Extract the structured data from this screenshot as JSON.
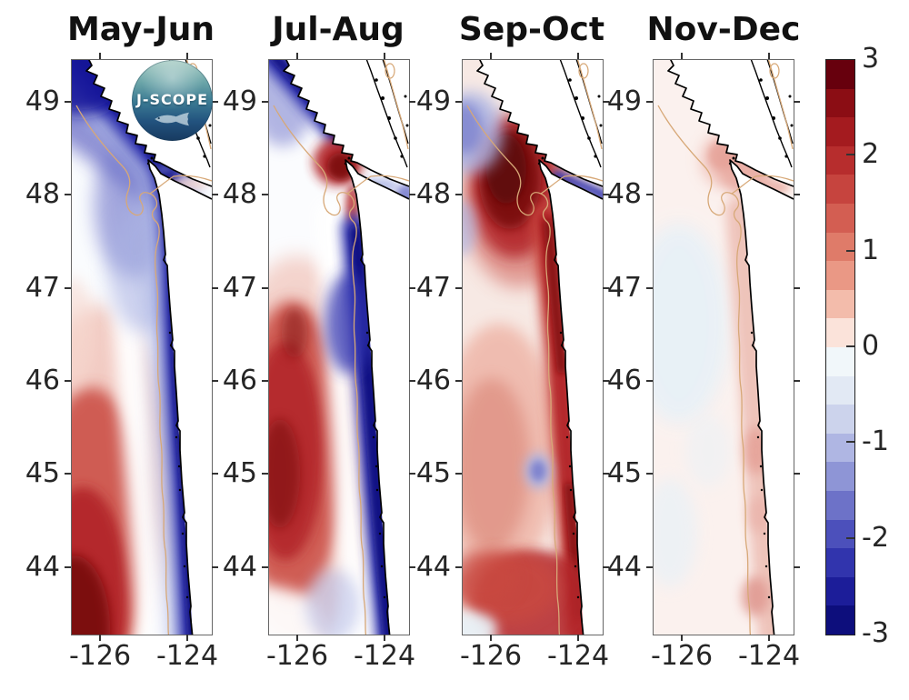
{
  "figure": {
    "titles": [
      "May-Jun",
      "Jul-Aug",
      "Sep-Oct",
      "Nov-Dec"
    ],
    "y_tick_labels": [
      "49",
      "48",
      "47",
      "46",
      "45",
      "44"
    ],
    "x_tick_labels": [
      "-126",
      "-124"
    ],
    "colorbar": {
      "tick_labels": [
        "3",
        "2",
        "1",
        "0",
        "-1",
        "-2",
        "-3"
      ],
      "segment_colors": [
        "#67000d",
        "#8b0d14",
        "#a41b1f",
        "#b72d2d",
        "#c6443e",
        "#d35e52",
        "#df7b69",
        "#ea9885",
        "#f3bcab",
        "#fbe3da",
        "#f1f7fa",
        "#e2e9f4",
        "#ccd3ec",
        "#afb6e3",
        "#8e95d6",
        "#6d72c8",
        "#4c50bb",
        "#3134ad",
        "#1c1d99",
        "#0d0e7c"
      ]
    },
    "logo_text": "J-SCOPE"
  },
  "palette": {
    "maroon": "#5f070d",
    "deep_red": "#7a0c11",
    "red": "#b3272a",
    "mid_red": "#c94a40",
    "salmon": "#e09486",
    "pink": "#eeb2a4",
    "rose": "#eec1b8",
    "rose2": "#e9aca3",
    "rose3": "#e5a096",
    "rose4": "#e09a92",
    "rose5": "#eab3aa",
    "light_pink": "#f7d9d0",
    "white": "#ffffff",
    "faint_blue": "#e8f1f7",
    "light_blue": "#aab3e3",
    "mid_blue": "#6a6fc8",
    "blue": "#3336b0",
    "deep_blue": "#14149a",
    "navy": "#0a0a80",
    "tan": "#d7a877",
    "coast": "#000000",
    "axis_text": "#262626",
    "p1_base": "#fafcfe",
    "p2_base": "#fbfcfe",
    "p3_base": "#f7e9e4",
    "p4_base": "#fbf1ee"
  },
  "chart_data": {
    "type": "heatmap",
    "panels": [
      {
        "title": "May-Jun",
        "pattern": "Strong negative anomaly (-2 to -3) along the entire coast and off Vancouver Island; strong positive anomaly (+2 to +3) offshore to the southwest; narrow near-zero white band between them."
      },
      {
        "title": "Jul-Aug",
        "pattern": "Strong negative anomaly (-2 to -3) in a coastal band along Washington and Oregon and off Vancouver Island; positive anomaly (+1.5 to +2.5) in a large offshore pool to the west-southwest; localized positive patch (+2) at the Strait of Juan de Fuca entrance."
      },
      {
        "title": "Sep-Oct",
        "pattern": "Strong positive anomaly (+2 to +3) off southern Vancouver Island and in a band hugging the Washington-Oregon coast; moderate positive (+1) offshore pool; negative patches (-1 to -2) in the Strait of Juan de Fuca and small -1 spot offshore; weak negative in the far northwest corner."
      },
      {
        "title": "Nov-Dec",
        "pattern": "Weak positive anomaly (0 to +1) nearly everywhere; slightly stronger (+1) band along the coast and near the Strait of Juan de Fuca entrance; patches of ~0 offshore."
      }
    ],
    "x_axis": {
      "ticks": [
        -126,
        -124
      ],
      "range": [
        -126.7,
        -123.4
      ]
    },
    "y_axis": {
      "ticks": [
        49,
        48,
        47,
        46,
        45,
        44
      ],
      "range": [
        43.3,
        49.5
      ]
    },
    "colorbar": {
      "range": [
        -3,
        3
      ],
      "ticks": [
        3,
        2,
        1,
        0,
        -1,
        -2,
        -3
      ],
      "n_segments": 20
    },
    "legend_position": "right colorbar",
    "grid": false
  }
}
